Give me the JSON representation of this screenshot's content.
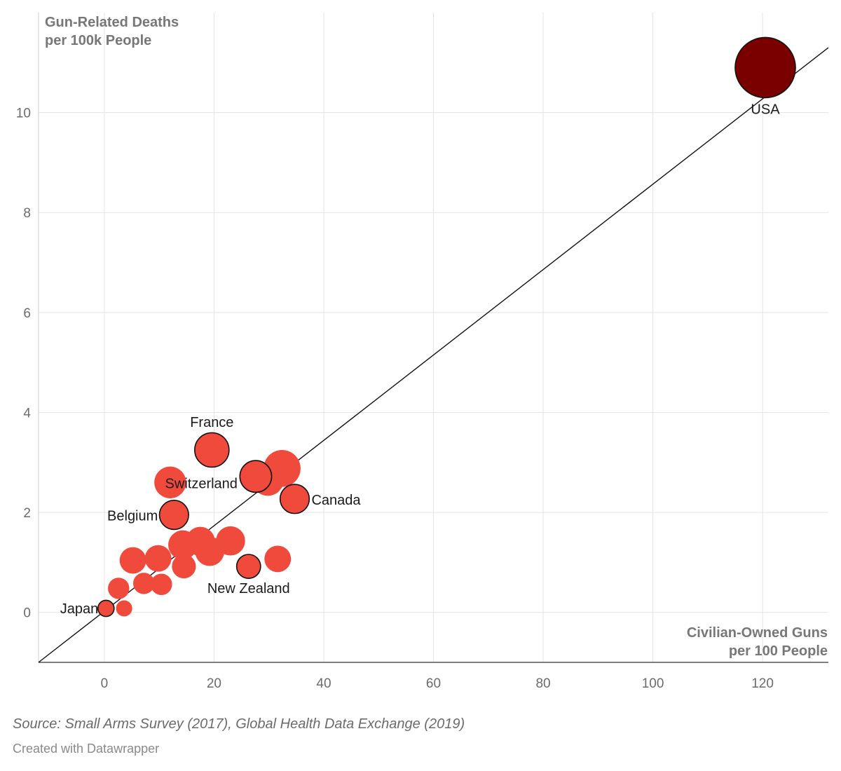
{
  "chart_data": {
    "type": "scatter",
    "xlabel_lines": [
      "Civilian-Owned Guns",
      "per 100 People"
    ],
    "ylabel_lines": [
      "Gun-Related Deaths",
      "per 100k People"
    ],
    "xlim": [
      -12,
      132
    ],
    "ylim": [
      -1,
      12
    ],
    "x_ticks": [
      0,
      20,
      40,
      60,
      80,
      100,
      120
    ],
    "y_ticks": [
      0,
      2,
      4,
      6,
      8,
      10
    ],
    "grid": true,
    "trendline": {
      "from": [
        -12,
        -1
      ],
      "to": [
        132,
        11.3
      ]
    },
    "highlight_color": "#7a0000",
    "point_color": "#f04a3c",
    "points": [
      {
        "x": 120.5,
        "y": 10.9,
        "size": 1.0,
        "label": "USA",
        "outlined": true,
        "highlight": true
      },
      {
        "x": 19.6,
        "y": 3.25,
        "size": 0.5,
        "label": "France",
        "outlined": true
      },
      {
        "x": 27.6,
        "y": 2.72,
        "size": 0.45,
        "label": "Switzerland",
        "outlined": true
      },
      {
        "x": 34.7,
        "y": 2.27,
        "size": 0.4,
        "label": "Canada",
        "outlined": true
      },
      {
        "x": 12.7,
        "y": 1.95,
        "size": 0.4,
        "label": "Belgium",
        "outlined": true
      },
      {
        "x": 26.3,
        "y": 0.92,
        "size": 0.3,
        "label": "New Zealand",
        "outlined": true
      },
      {
        "x": 0.3,
        "y": 0.08,
        "size": 0.15,
        "label": "Japan",
        "outlined": true
      },
      {
        "x": 32.4,
        "y": 2.88,
        "size": 0.55
      },
      {
        "x": 29.8,
        "y": 2.65,
        "size": 0.45
      },
      {
        "x": 12.0,
        "y": 2.6,
        "size": 0.45
      },
      {
        "x": 14.3,
        "y": 1.35,
        "size": 0.4
      },
      {
        "x": 17.5,
        "y": 1.42,
        "size": 0.4
      },
      {
        "x": 19.2,
        "y": 1.22,
        "size": 0.4
      },
      {
        "x": 23.0,
        "y": 1.43,
        "size": 0.4
      },
      {
        "x": 31.6,
        "y": 1.07,
        "size": 0.35
      },
      {
        "x": 5.2,
        "y": 1.04,
        "size": 0.35
      },
      {
        "x": 9.8,
        "y": 1.08,
        "size": 0.35
      },
      {
        "x": 14.5,
        "y": 0.92,
        "size": 0.3
      },
      {
        "x": 7.2,
        "y": 0.58,
        "size": 0.25
      },
      {
        "x": 10.4,
        "y": 0.56,
        "size": 0.25
      },
      {
        "x": 2.6,
        "y": 0.48,
        "size": 0.25
      },
      {
        "x": 3.6,
        "y": 0.08,
        "size": 0.15
      }
    ]
  },
  "footer": {
    "source": "Source: Small Arms Survey (2017), Global Health Data Exchange (2019)",
    "credit": "Created with Datawrapper"
  }
}
